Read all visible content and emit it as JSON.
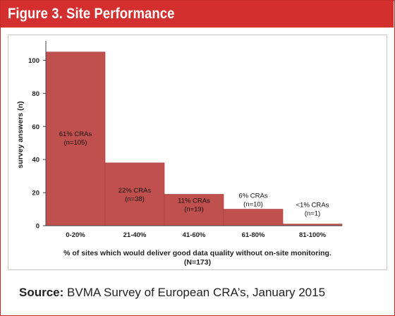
{
  "figure_title": "Figure 3. Site Performance",
  "source": {
    "label": "Source:",
    "text": "BVMA Survey of European CRA’s, January 2015"
  },
  "colors": {
    "title_bar": "#d32f2f",
    "bar_fill": "#c0504d",
    "bar_stroke": "#a33b38"
  },
  "chart_data": {
    "type": "bar",
    "title": "",
    "ylabel": "survey answers (n)",
    "xlabel": "% of sites which would deliver good data quality without on-site monitoring.",
    "xlabel_note": "(N=173)",
    "ylim": [
      0,
      110
    ],
    "yticks": [
      0,
      20,
      40,
      60,
      80,
      100
    ],
    "grid": false,
    "categories": [
      "0-20%",
      "21-40%",
      "41-60%",
      "61-80%",
      "81-100%"
    ],
    "values": [
      105,
      38,
      19,
      10,
      1
    ],
    "bar_labels": [
      [
        "61% CRAs",
        "(n=105)"
      ],
      [
        "22% CRAs",
        "(n=38)"
      ],
      [
        "11% CRAs",
        "(n=19)"
      ],
      [
        "6% CRAs",
        "(n=10)"
      ],
      [
        "<1% CRAs",
        "(n=1)"
      ]
    ]
  }
}
